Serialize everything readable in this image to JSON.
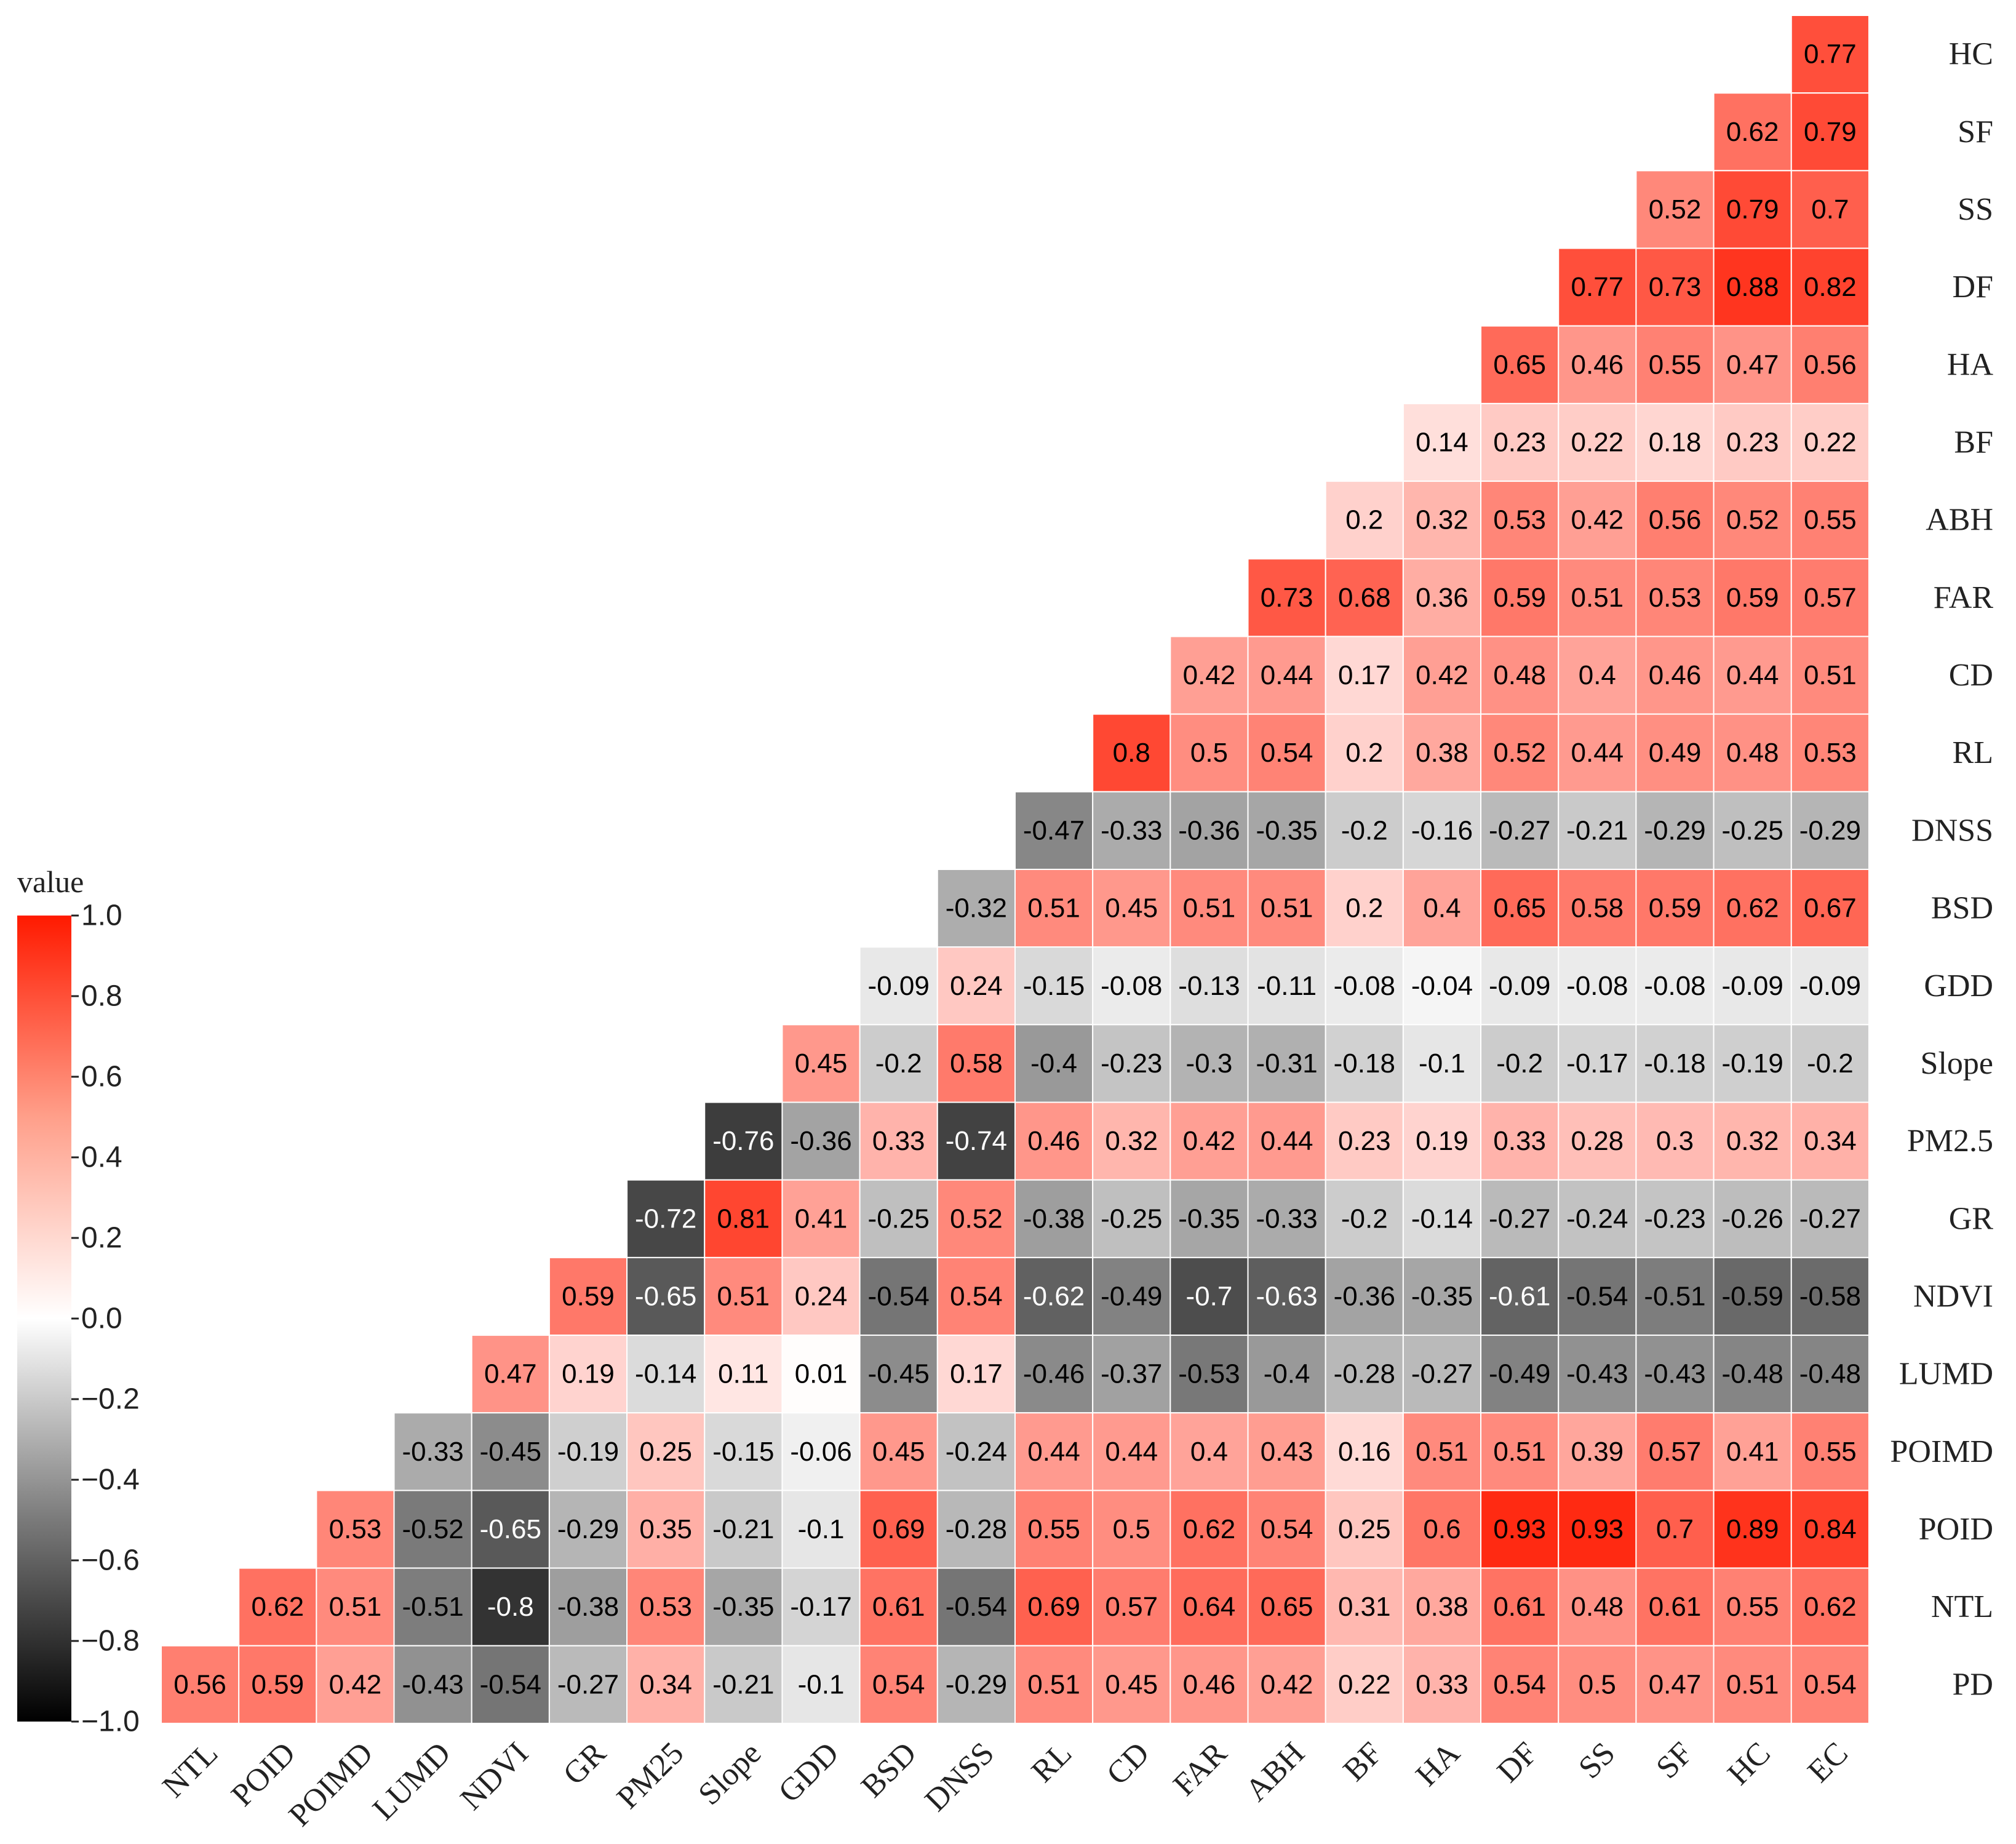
{
  "chart_data": {
    "type": "heatmap",
    "title": "",
    "legend_title": "value",
    "legend_ticks": [
      "1.0",
      "0.8",
      "0.6",
      "0.4",
      "0.2",
      "0.0",
      "−0.2",
      "−0.4",
      "−0.6",
      "−0.8",
      "−1.0"
    ],
    "color_range": [
      -1.0,
      1.0
    ],
    "colors": {
      "low": "#000000",
      "mid": "#ffffff",
      "high": "#ff1a00"
    },
    "x_labels": [
      "NTL",
      "POID",
      "POIMD",
      "LUMD",
      "NDVI",
      "GR",
      "PM25",
      "Slope",
      "GDD",
      "BSD",
      "DNSS",
      "RL",
      "CD",
      "FAR",
      "ABH",
      "BF",
      "HA",
      "DF",
      "SS",
      "SF",
      "HC",
      "EC"
    ],
    "y_labels": [
      "HC",
      "SF",
      "SS",
      "DF",
      "HA",
      "BF",
      "ABH",
      "FAR",
      "CD",
      "RL",
      "DNSS",
      "BSD",
      "GDD",
      "Slope",
      "PM2.5",
      "GR",
      "NDVI",
      "LUMD",
      "POIMD",
      "POID",
      "NTL",
      "PD"
    ],
    "rows": [
      [
        "0.77"
      ],
      [
        "0.62",
        "0.79"
      ],
      [
        "0.52",
        "0.79",
        "0.7"
      ],
      [
        "0.77",
        "0.73",
        "0.88",
        "0.82"
      ],
      [
        "0.65",
        "0.46",
        "0.55",
        "0.47",
        "0.56"
      ],
      [
        "0.14",
        "0.23",
        "0.22",
        "0.18",
        "0.23",
        "0.22"
      ],
      [
        "0.2",
        "0.32",
        "0.53",
        "0.42",
        "0.56",
        "0.52",
        "0.55"
      ],
      [
        "0.73",
        "0.68",
        "0.36",
        "0.59",
        "0.51",
        "0.53",
        "0.59",
        "0.57"
      ],
      [
        "0.42",
        "0.44",
        "0.17",
        "0.42",
        "0.48",
        "0.4",
        "0.46",
        "0.44",
        "0.51"
      ],
      [
        "0.8",
        "0.5",
        "0.54",
        "0.2",
        "0.38",
        "0.52",
        "0.44",
        "0.49",
        "0.48",
        "0.53"
      ],
      [
        "-0.47",
        "-0.33",
        "-0.36",
        "-0.35",
        "-0.2",
        "-0.16",
        "-0.27",
        "-0.21",
        "-0.29",
        "-0.25",
        "-0.29"
      ],
      [
        "-0.32",
        "0.51",
        "0.45",
        "0.51",
        "0.51",
        "0.2",
        "0.4",
        "0.65",
        "0.58",
        "0.59",
        "0.62",
        "0.67"
      ],
      [
        "-0.09",
        "0.24",
        "-0.15",
        "-0.08",
        "-0.13",
        "-0.11",
        "-0.08",
        "-0.04",
        "-0.09",
        "-0.08",
        "-0.08",
        "-0.09",
        "-0.09"
      ],
      [
        "0.45",
        "-0.2",
        "0.58",
        "-0.4",
        "-0.23",
        "-0.3",
        "-0.31",
        "-0.18",
        "-0.1",
        "-0.2",
        "-0.17",
        "-0.18",
        "-0.19",
        "-0.2"
      ],
      [
        "-0.76",
        "-0.36",
        "0.33",
        "-0.74",
        "0.46",
        "0.32",
        "0.42",
        "0.44",
        "0.23",
        "0.19",
        "0.33",
        "0.28",
        "0.3",
        "0.32",
        "0.34"
      ],
      [
        "-0.72",
        "0.81",
        "0.41",
        "-0.25",
        "0.52",
        "-0.38",
        "-0.25",
        "-0.35",
        "-0.33",
        "-0.2",
        "-0.14",
        "-0.27",
        "-0.24",
        "-0.23",
        "-0.26",
        "-0.27"
      ],
      [
        "0.59",
        "-0.65",
        "0.51",
        "0.24",
        "-0.54",
        "0.54",
        "-0.62",
        "-0.49",
        "-0.7",
        "-0.63",
        "-0.36",
        "-0.35",
        "-0.61",
        "-0.54",
        "-0.51",
        "-0.59",
        "-0.58"
      ],
      [
        "0.47",
        "0.19",
        "-0.14",
        "0.11",
        "0.01",
        "-0.45",
        "0.17",
        "-0.46",
        "-0.37",
        "-0.53",
        "-0.4",
        "-0.28",
        "-0.27",
        "-0.49",
        "-0.43",
        "-0.43",
        "-0.48",
        "-0.48"
      ],
      [
        "-0.33",
        "-0.45",
        "-0.19",
        "0.25",
        "-0.15",
        "-0.06",
        "0.45",
        "-0.24",
        "0.44",
        "0.44",
        "0.4",
        "0.43",
        "0.16",
        "0.51",
        "0.51",
        "0.39",
        "0.57",
        "0.41",
        "0.55"
      ],
      [
        "0.53",
        "-0.52",
        "-0.65",
        "-0.29",
        "0.35",
        "-0.21",
        "-0.1",
        "0.69",
        "-0.28",
        "0.55",
        "0.5",
        "0.62",
        "0.54",
        "0.25",
        "0.6",
        "0.93",
        "0.93",
        "0.7",
        "0.89",
        "0.84"
      ],
      [
        "0.62",
        "0.51",
        "-0.51",
        "-0.8",
        "-0.38",
        "0.53",
        "-0.35",
        "-0.17",
        "0.61",
        "-0.54",
        "0.69",
        "0.57",
        "0.64",
        "0.65",
        "0.31",
        "0.38",
        "0.61",
        "0.48",
        "0.61",
        "0.55",
        "0.62"
      ],
      [
        "0.56",
        "0.59",
        "0.42",
        "-0.43",
        "-0.54",
        "-0.27",
        "0.34",
        "-0.21",
        "-0.1",
        "0.54",
        "-0.29",
        "0.51",
        "0.45",
        "0.46",
        "0.42",
        "0.22",
        "0.33",
        "0.54",
        "0.5",
        "0.47",
        "0.51",
        "0.54"
      ]
    ]
  }
}
